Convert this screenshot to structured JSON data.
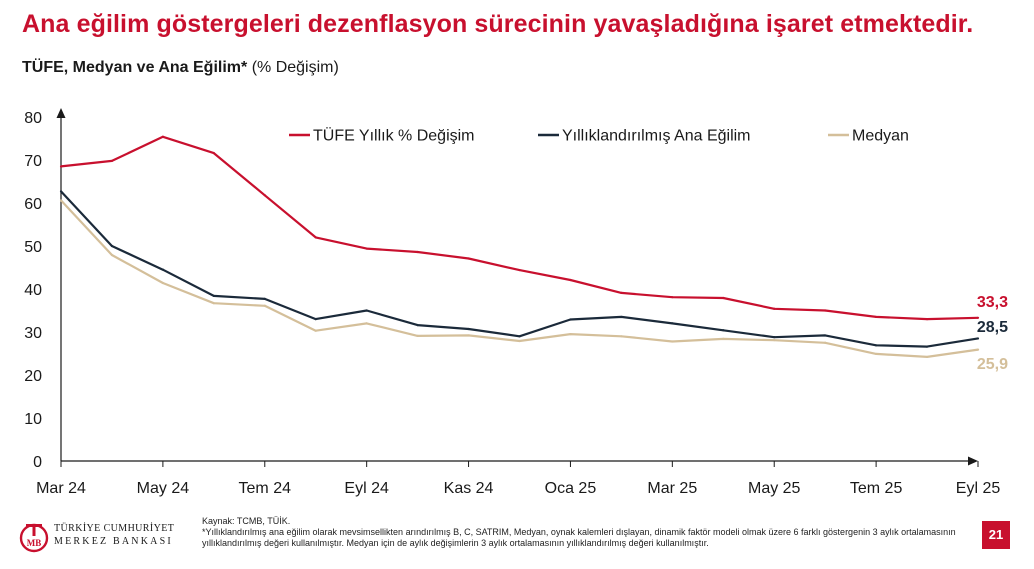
{
  "headline": "Ana eğilim göstergeleri dezenflasyon sürecinin yavaşladığına işaret etmektedir.",
  "subtitle": {
    "bold": "TÜFE, Medyan ve Ana Eğilim*",
    "normal": "(% Değişim)"
  },
  "chart_data": {
    "type": "line",
    "title": "",
    "xlabel": "",
    "ylabel": "",
    "x": [
      "Mar 24",
      "Nis 24",
      "May 24",
      "Haz 24",
      "Tem 24",
      "Ağu 24",
      "Eyl 24",
      "Eki 24",
      "Kas 24",
      "Ara 24",
      "Oca 25",
      "Şub 25",
      "Mar 25",
      "Nis 25",
      "May 25",
      "Haz 25",
      "Tem 25",
      "Ağu 25",
      "Eyl 25"
    ],
    "x_tick_labels": [
      "Mar 24",
      "May 24",
      "Tem 24",
      "Eyl 24",
      "Kas 24",
      "Oca 25",
      "Mar 25",
      "May 25",
      "Tem 25",
      "Eyl 25"
    ],
    "y_tick_labels": [
      "0",
      "10",
      "20",
      "30",
      "40",
      "50",
      "60",
      "70",
      "80"
    ],
    "ylim": [
      0,
      80
    ],
    "grid": false,
    "legend_position": "top",
    "series": [
      {
        "name": "TÜFE Yıllık % Değişim",
        "color": "#c8102e",
        "values": [
          68.5,
          69.8,
          75.4,
          71.6,
          61.8,
          52.0,
          49.4,
          48.6,
          47.1,
          44.4,
          42.1,
          39.1,
          38.1,
          37.9,
          35.4,
          35.0,
          33.5,
          33.0,
          33.3
        ],
        "end_label": "33,3"
      },
      {
        "name": "Yıllıklandırılmış Ana Eğilim",
        "color": "#1b2a3a",
        "values": [
          62.7,
          50.0,
          44.5,
          38.4,
          37.7,
          33.0,
          35.0,
          31.6,
          30.7,
          29.0,
          32.9,
          33.5,
          32.0,
          30.4,
          28.8,
          29.2,
          26.9,
          26.6,
          28.5
        ],
        "end_label": "28,5"
      },
      {
        "name": "Medyan",
        "color": "#d4bf9a",
        "values": [
          60.6,
          47.9,
          41.4,
          36.7,
          36.1,
          30.3,
          32.0,
          29.1,
          29.2,
          27.9,
          29.5,
          29.0,
          27.8,
          28.4,
          28.1,
          27.5,
          24.9,
          24.2,
          25.9
        ],
        "end_label": "25,9"
      }
    ]
  },
  "footer": {
    "logo_line1": "TÜRKİYE CUMHURİYET",
    "logo_line2": "MERKEZ BANKASI",
    "source": "Kaynak: TCMB, TÜİK.",
    "note": "*Yıllıklandırılmış ana eğilim olarak mevsimsellikten arındırılmış B, C, SATRIM, Medyan, oynak kalemleri dışlayan, dinamik faktör modeli olmak üzere 6 farklı göstergenin 3 aylık ortalamasının yıllıklandırılmış değeri kullanılmıştır. Medyan için de aylık değişimlerin 3 aylık ortalamasının yıllıklandırılmış değeri kullanılmıştır.",
    "page_number": "21"
  },
  "colors": {
    "accent": "#c8102e",
    "text": "#1a1a1a"
  }
}
